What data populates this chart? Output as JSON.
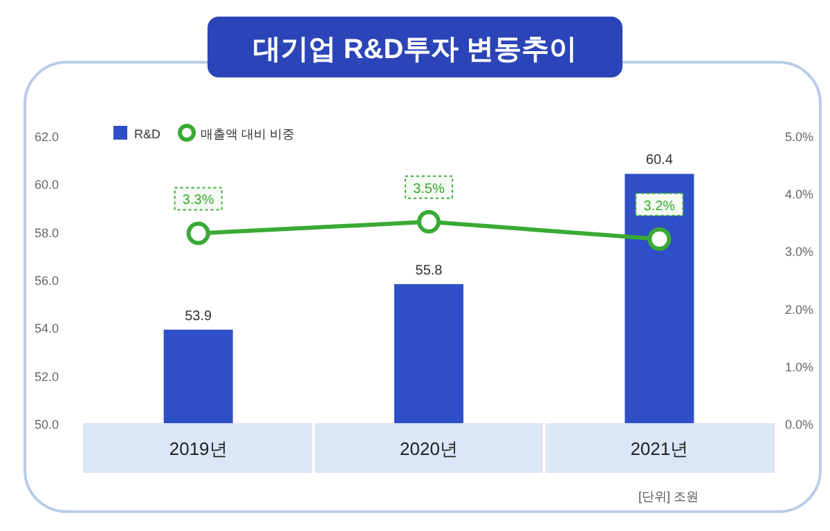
{
  "chart_data": {
    "type": "bar",
    "title": "대기업 R&D투자 변동추이",
    "categories": [
      "2019년",
      "2020년",
      "2021년"
    ],
    "series": [
      {
        "name": "R&D",
        "color": "#2f4fc8",
        "values": [
          53.9,
          55.8,
          60.4
        ],
        "value_labels": [
          "53.9",
          "55.8",
          "60.4"
        ]
      },
      {
        "name": "매출액 대비 비중",
        "type": "line",
        "axis": "y2",
        "color": "#3aaa35",
        "values": [
          3.3,
          3.5,
          3.2
        ],
        "value_labels": [
          "3.3%",
          "3.5%",
          "3.2%"
        ],
        "marker": "circle"
      }
    ],
    "ylim": [
      50,
      62
    ],
    "yticks": [
      {
        "value": 50,
        "label": "50.0"
      },
      {
        "value": 52,
        "label": "52.0"
      },
      {
        "value": 54,
        "label": "54.0"
      },
      {
        "value": 56,
        "label": "56.0"
      },
      {
        "value": 58,
        "label": "58.0"
      },
      {
        "value": 60,
        "label": "60.0"
      },
      {
        "value": 62,
        "label": "62.0"
      }
    ],
    "y2lim": [
      0,
      5
    ],
    "y2ticks": [
      {
        "value": 0,
        "label": "0.0%"
      },
      {
        "value": 1,
        "label": "1.0%"
      },
      {
        "value": 2,
        "label": "2.0%"
      },
      {
        "value": 3,
        "label": "3.0%"
      },
      {
        "value": 4,
        "label": "4.0%"
      },
      {
        "value": 5,
        "label": "5.0%"
      }
    ],
    "legend": "top left",
    "grid": false,
    "annotations": [
      "[단위] 조원"
    ]
  }
}
